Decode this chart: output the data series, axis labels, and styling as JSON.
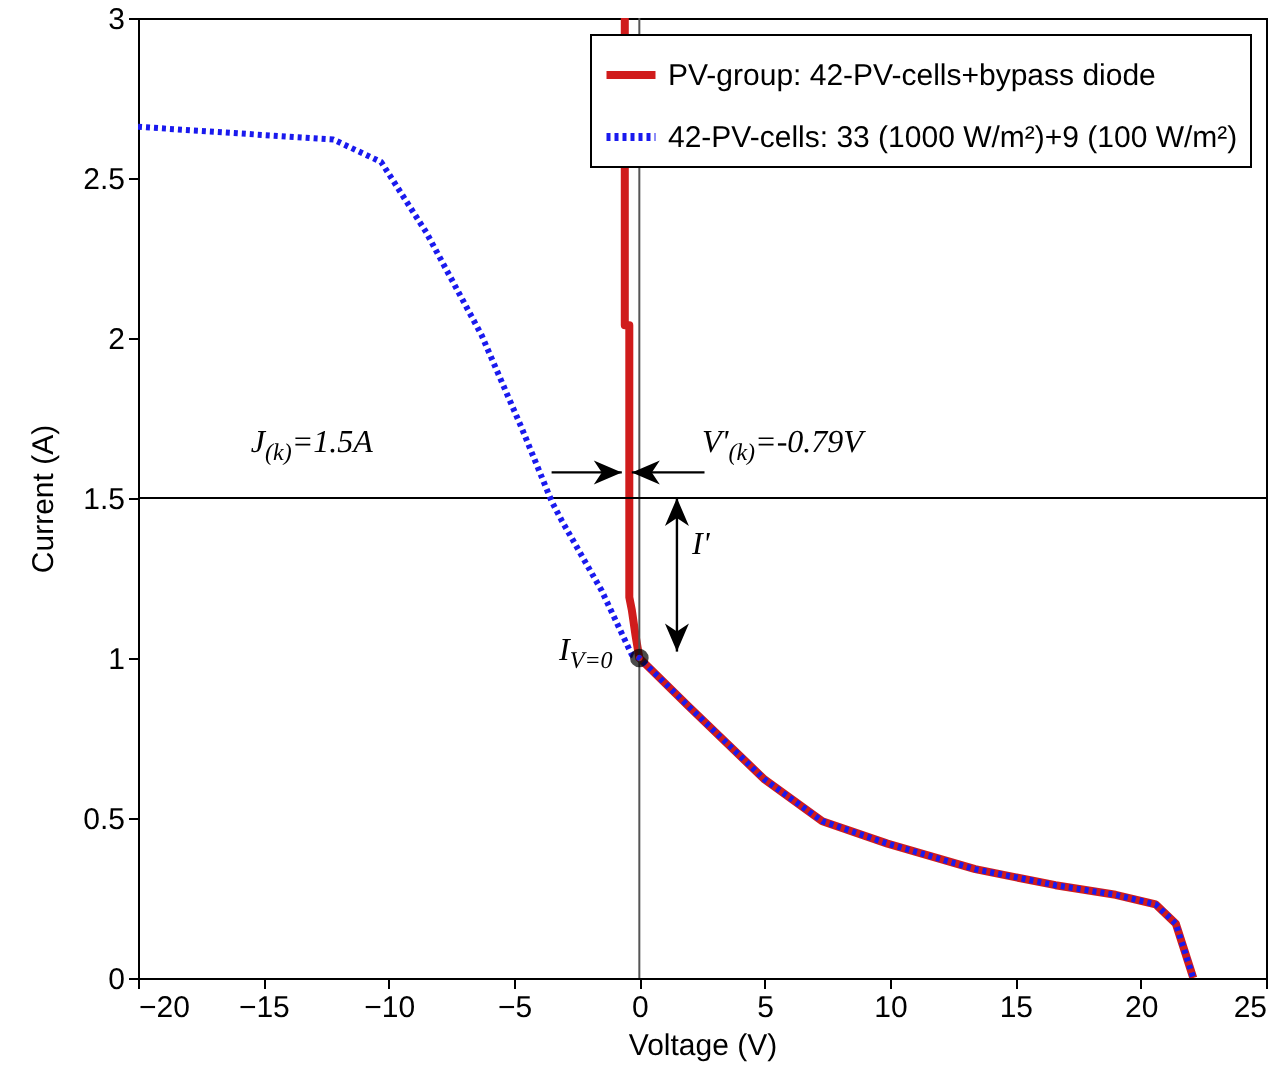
{
  "chart_data": {
    "type": "line",
    "xlabel": "Voltage (V)",
    "ylabel": "Current (A)",
    "xlim": [
      -20,
      25
    ],
    "xticks": [
      -20,
      -15,
      -10,
      -5,
      0,
      5,
      10,
      15,
      20,
      25
    ],
    "ylim": [
      0,
      3
    ],
    "yticks": [
      0,
      0.5,
      1,
      1.5,
      2,
      2.5,
      3
    ],
    "legend": "top right",
    "grid": false,
    "series": [
      {
        "name": "PV-group: 42-PV-cells+bypass diode",
        "color": "#d01c1c",
        "line_style": "solid",
        "x": [
          -0.58,
          -0.58,
          -0.4,
          -0.4,
          -0.3,
          -0.15,
          0,
          1.95,
          5,
          7.3,
          9.9,
          13.4,
          16.6,
          19,
          20.6,
          21.4,
          22.1
        ],
        "values": [
          3,
          2.04,
          2.04,
          1.19,
          1.15,
          1.07,
          1,
          0.85,
          0.62,
          0.49,
          0.42,
          0.34,
          0.29,
          0.26,
          0.23,
          0.17,
          0
        ]
      },
      {
        "name": "42-PV-cells: 33 (1000 W/m²)+9 (100 W/m²)",
        "color": "#1a1aee",
        "line_style": "dotted",
        "x": [
          -20,
          -12.2,
          -10.3,
          -8.5,
          -6.3,
          -4.7,
          -3.5,
          -3.1,
          -1.5,
          -0.3,
          0,
          1.95,
          5,
          7.3,
          9.9,
          13.4,
          16.6,
          19,
          20.6,
          21.4,
          22.1
        ],
        "values": [
          2.66,
          2.62,
          2.55,
          2.33,
          2.01,
          1.72,
          1.49,
          1.43,
          1.21,
          1.01,
          1,
          0.85,
          0.62,
          0.49,
          0.42,
          0.34,
          0.29,
          0.26,
          0.23,
          0.17,
          0
        ]
      },
      {
        "type": "scatter",
        "marker": "circle",
        "color": "#000000",
        "x": [
          0
        ],
        "values": [
          1
        ]
      }
    ],
    "ref_lines": [
      {
        "axis": "x",
        "value": 0,
        "color": "#555555"
      },
      {
        "axis": "y",
        "value": 1.5,
        "color": "#000000"
      }
    ],
    "annotations": [
      "J$_{(k)}$=1.5A",
      "V'$_{(k)}$=-0.79V",
      "I'",
      "I$_{V=0}$"
    ]
  }
}
